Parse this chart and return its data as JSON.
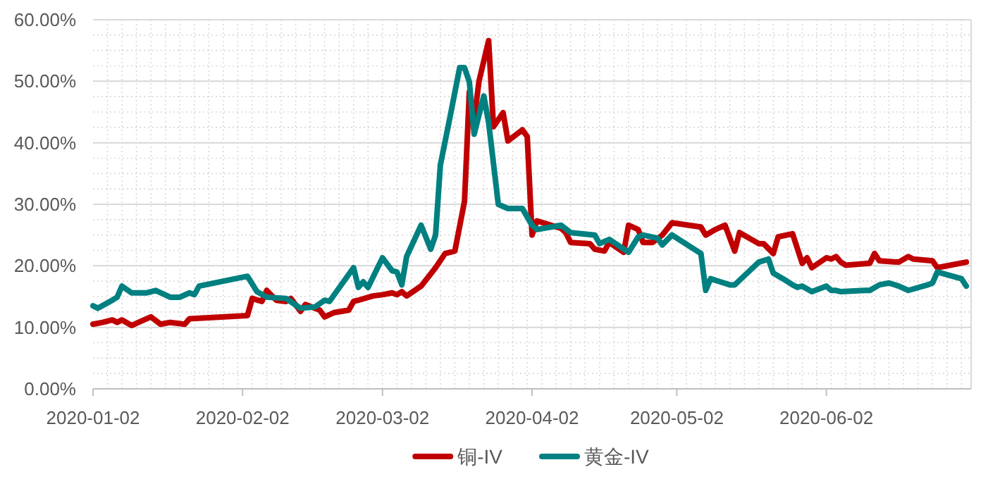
{
  "chart_data": {
    "type": "line",
    "xlim": [
      "2020-01-02",
      "2020-07-02"
    ],
    "xticks": [
      "2020-01-02",
      "2020-02-02",
      "2020-03-02",
      "2020-04-02",
      "2020-05-02",
      "2020-06-02"
    ],
    "ylim": [
      0,
      60
    ],
    "yticks": [
      {
        "value": 0,
        "label": "0.00%"
      },
      {
        "value": 10,
        "label": "10.00%"
      },
      {
        "value": 20,
        "label": "20.00%"
      },
      {
        "value": 30,
        "label": "30.00%"
      },
      {
        "value": 40,
        "label": "40.00%"
      },
      {
        "value": 50,
        "label": "50.00%"
      },
      {
        "value": 60,
        "label": "60.00%"
      }
    ],
    "grid": true,
    "legend": "bottom",
    "series": [
      {
        "name": "铜-IV",
        "color": "#c00000",
        "x": [
          "2020-01-02",
          "2020-01-04",
          "2020-01-06",
          "2020-01-07",
          "2020-01-08",
          "2020-01-10",
          "2020-01-12",
          "2020-01-14",
          "2020-01-16",
          "2020-01-18",
          "2020-01-21",
          "2020-01-22",
          "2020-02-03",
          "2020-02-04",
          "2020-02-06",
          "2020-02-07",
          "2020-02-09",
          "2020-02-11",
          "2020-02-12",
          "2020-02-14",
          "2020-02-15",
          "2020-02-18",
          "2020-02-19",
          "2020-02-21",
          "2020-02-24",
          "2020-02-25",
          "2020-02-26",
          "2020-02-29",
          "2020-03-02",
          "2020-03-04",
          "2020-03-05",
          "2020-03-06",
          "2020-03-07",
          "2020-03-10",
          "2020-03-13",
          "2020-03-15",
          "2020-03-17",
          "2020-03-19",
          "2020-03-20",
          "2020-03-21",
          "2020-03-22",
          "2020-03-24",
          "2020-03-25",
          "2020-03-27",
          "2020-03-28",
          "2020-03-31",
          "2020-04-01",
          "2020-04-02",
          "2020-04-03",
          "2020-04-08",
          "2020-04-09",
          "2020-04-10",
          "2020-04-14",
          "2020-04-15",
          "2020-04-17",
          "2020-04-18",
          "2020-04-21",
          "2020-04-22",
          "2020-04-24",
          "2020-04-25",
          "2020-04-27",
          "2020-04-29",
          "2020-05-01",
          "2020-05-07",
          "2020-05-08",
          "2020-05-10",
          "2020-05-12",
          "2020-05-14",
          "2020-05-15",
          "2020-05-19",
          "2020-05-20",
          "2020-05-22",
          "2020-05-23",
          "2020-05-26",
          "2020-05-28",
          "2020-05-29",
          "2020-05-30",
          "2020-06-02",
          "2020-06-03",
          "2020-06-04",
          "2020-06-05",
          "2020-06-06",
          "2020-06-11",
          "2020-06-12",
          "2020-06-13",
          "2020-06-17",
          "2020-06-19",
          "2020-06-20",
          "2020-06-24",
          "2020-06-25",
          "2020-07-01"
        ],
        "values": [
          10.5,
          10.8,
          11.2,
          10.8,
          11.2,
          10.3,
          11.0,
          11.7,
          10.5,
          10.8,
          10.5,
          11.4,
          11.9,
          14.7,
          14.2,
          16.0,
          14.4,
          14.2,
          14.7,
          12.6,
          13.7,
          12.8,
          11.7,
          12.4,
          12.8,
          14.2,
          14.4,
          15.1,
          15.3,
          15.6,
          15.3,
          15.8,
          15.1,
          16.7,
          19.7,
          22.0,
          22.4,
          30.5,
          48.3,
          43.7,
          50.0,
          56.6,
          42.6,
          44.9,
          40.3,
          42.1,
          41.0,
          25.0,
          27.3,
          26.1,
          25.4,
          23.8,
          23.6,
          22.7,
          22.4,
          23.8,
          22.2,
          26.6,
          25.9,
          23.8,
          23.8,
          25.0,
          27.0,
          26.3,
          25.0,
          25.9,
          26.6,
          22.4,
          25.4,
          23.6,
          23.6,
          22.0,
          24.7,
          25.2,
          20.4,
          21.3,
          19.7,
          21.3,
          21.1,
          21.5,
          20.6,
          20.1,
          20.4,
          22.0,
          20.8,
          20.6,
          21.5,
          21.1,
          20.8,
          19.7,
          20.6
        ]
      },
      {
        "name": "黄金-IV",
        "color": "#008080",
        "x": [
          "2020-01-02",
          "2020-01-03",
          "2020-01-06",
          "2020-01-07",
          "2020-01-08",
          "2020-01-10",
          "2020-01-13",
          "2020-01-15",
          "2020-01-18",
          "2020-01-20",
          "2020-01-22",
          "2020-01-23",
          "2020-01-24",
          "2020-02-03",
          "2020-02-05",
          "2020-02-07",
          "2020-02-11",
          "2020-02-14",
          "2020-02-17",
          "2020-02-19",
          "2020-02-20",
          "2020-02-25",
          "2020-02-26",
          "2020-02-27",
          "2020-02-28",
          "2020-03-02",
          "2020-03-04",
          "2020-03-05",
          "2020-03-06",
          "2020-03-07",
          "2020-03-10",
          "2020-03-12",
          "2020-03-13",
          "2020-03-14",
          "2020-03-16",
          "2020-03-18",
          "2020-03-19",
          "2020-03-20",
          "2020-03-21",
          "2020-03-23",
          "2020-03-24",
          "2020-03-26",
          "2020-03-28",
          "2020-03-31",
          "2020-04-02",
          "2020-04-03",
          "2020-04-08",
          "2020-04-10",
          "2020-04-15",
          "2020-04-16",
          "2020-04-18",
          "2020-04-22",
          "2020-04-24",
          "2020-04-25",
          "2020-04-28",
          "2020-04-29",
          "2020-05-01",
          "2020-05-07",
          "2020-05-08",
          "2020-05-09",
          "2020-05-13",
          "2020-05-14",
          "2020-05-19",
          "2020-05-21",
          "2020-05-22",
          "2020-05-24",
          "2020-05-26",
          "2020-05-27",
          "2020-05-28",
          "2020-05-30",
          "2020-06-02",
          "2020-06-03",
          "2020-06-04",
          "2020-06-05",
          "2020-06-10",
          "2020-06-11",
          "2020-06-13",
          "2020-06-15",
          "2020-06-17",
          "2020-06-19",
          "2020-06-23",
          "2020-06-24",
          "2020-06-25",
          "2020-06-30",
          "2020-07-01"
        ],
        "values": [
          13.5,
          13.1,
          14.4,
          14.9,
          16.7,
          15.6,
          15.6,
          16.0,
          14.9,
          14.9,
          15.6,
          15.3,
          16.7,
          18.3,
          15.8,
          14.9,
          14.7,
          13.1,
          13.3,
          14.4,
          14.2,
          19.7,
          16.5,
          17.4,
          16.5,
          21.3,
          19.2,
          19.0,
          16.9,
          21.5,
          26.6,
          22.7,
          25.0,
          36.4,
          44.2,
          52.2,
          52.2,
          49.9,
          41.4,
          47.6,
          43.3,
          30.0,
          29.3,
          29.3,
          26.6,
          25.9,
          26.6,
          25.4,
          25.0,
          23.6,
          24.3,
          22.2,
          24.7,
          25.0,
          24.5,
          23.4,
          25.0,
          22.0,
          16.0,
          17.9,
          16.9,
          16.9,
          20.6,
          21.1,
          18.8,
          17.9,
          16.9,
          16.5,
          16.7,
          15.8,
          16.7,
          16.0,
          16.0,
          15.8,
          16.0,
          16.0,
          16.9,
          17.2,
          16.7,
          16.0,
          16.9,
          17.2,
          19.0,
          17.9,
          16.7
        ]
      }
    ]
  }
}
